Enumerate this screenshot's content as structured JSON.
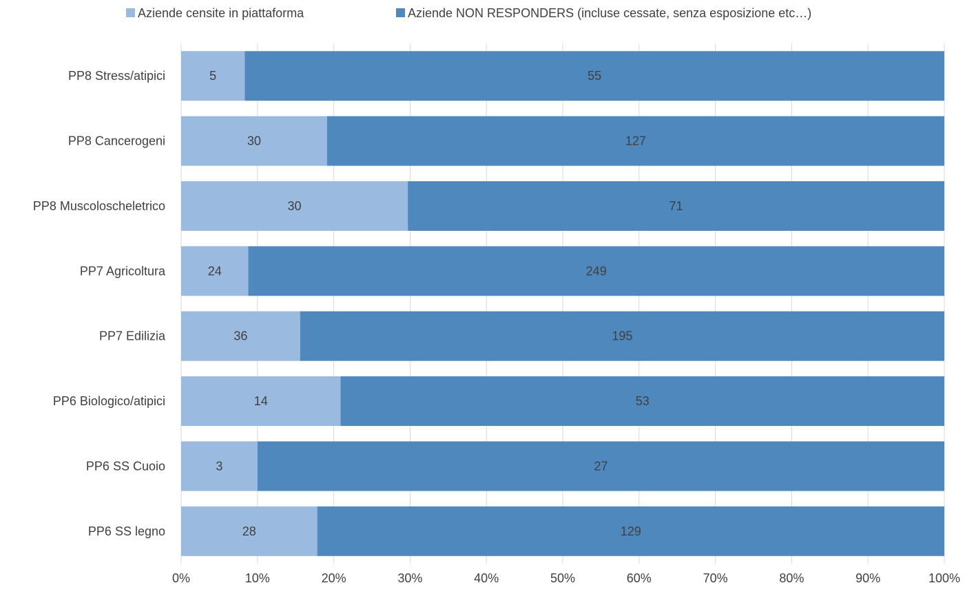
{
  "chart_data": {
    "type": "bar",
    "orientation": "horizontal",
    "stacked": "percent",
    "title": "",
    "xlabel": "",
    "ylabel": "",
    "categories": [
      "PP8 Stress/atipici",
      "PP8 Cancerogeni",
      "PP8 Muscoloscheletrico",
      "PP7 Agricoltura",
      "PP7 Edilizia",
      "PP6 Biologico/atipici",
      "PP6 SS Cuoio",
      "PP6 SS legno"
    ],
    "series": [
      {
        "name": "Aziende censite in piattaforma",
        "color": "#9bbadf",
        "values": [
          5,
          30,
          30,
          24,
          36,
          14,
          3,
          28
        ]
      },
      {
        "name": "Aziende NON RESPONDERS (incluse cessate, senza esposizione etc…)",
        "color": "#4f88bd",
        "values": [
          55,
          127,
          71,
          249,
          195,
          53,
          27,
          129
        ]
      }
    ],
    "x_ticks": [
      "0%",
      "10%",
      "20%",
      "30%",
      "40%",
      "50%",
      "60%",
      "70%",
      "80%",
      "90%",
      "100%"
    ],
    "xlim": [
      0,
      100
    ],
    "grid": "vertical",
    "legend": "top"
  }
}
